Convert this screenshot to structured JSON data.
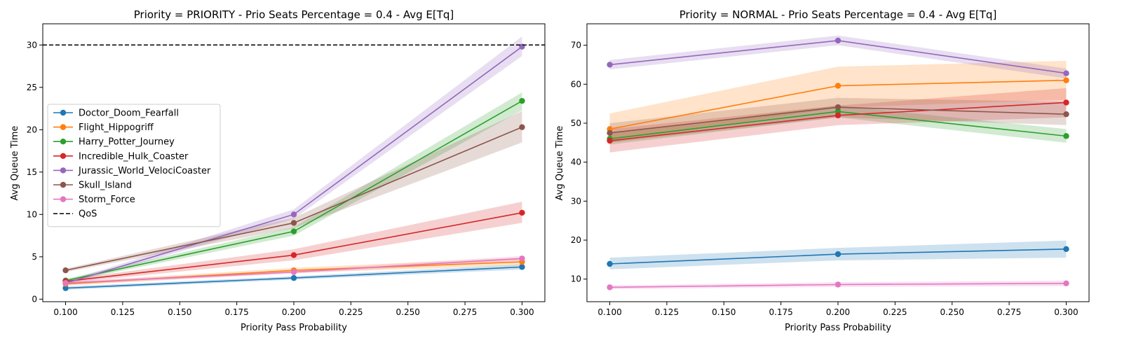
{
  "chart_data": [
    {
      "type": "line",
      "title": "Priority = PRIORITY - Prio Seats Percentage = 0.4 - Avg E[Tq]",
      "xlabel": "Priority Pass Probability",
      "ylabel": "Avg Queue Time",
      "xlim": [
        0.09,
        0.31
      ],
      "ylim": [
        -0.3,
        32.5
      ],
      "xticks": [
        0.1,
        0.125,
        0.15,
        0.175,
        0.2,
        0.225,
        0.25,
        0.275,
        0.3
      ],
      "xtick_labels": [
        "0.100",
        "0.125",
        "0.150",
        "0.175",
        "0.200",
        "0.225",
        "0.250",
        "0.275",
        "0.300"
      ],
      "yticks": [
        0,
        5,
        10,
        15,
        20,
        25,
        30
      ],
      "ytick_labels": [
        "0",
        "5",
        "10",
        "15",
        "20",
        "25",
        "30"
      ],
      "grid": false,
      "legend_position": "center-left",
      "x": [
        0.1,
        0.2,
        0.3
      ],
      "series": [
        {
          "name": "Doctor_Doom_Fearfall",
          "color": "#1f77b4",
          "values": [
            1.3,
            2.5,
            3.8
          ],
          "lower": [
            1.1,
            2.3,
            3.5
          ],
          "upper": [
            1.5,
            2.7,
            4.1
          ]
        },
        {
          "name": "Flight_Hippogriff",
          "color": "#ff7f0e",
          "values": [
            1.8,
            3.4,
            4.4
          ],
          "lower": [
            1.6,
            3.1,
            4.0
          ],
          "upper": [
            2.0,
            3.7,
            4.9
          ]
        },
        {
          "name": "Harry_Potter_Journey",
          "color": "#2ca02c",
          "values": [
            2.2,
            8.0,
            23.4
          ],
          "lower": [
            2.0,
            7.5,
            22.3
          ],
          "upper": [
            2.4,
            8.5,
            24.4
          ]
        },
        {
          "name": "Incredible_Hulk_Coaster",
          "color": "#d62728",
          "values": [
            2.1,
            5.2,
            10.2
          ],
          "lower": [
            1.9,
            4.6,
            9.0
          ],
          "upper": [
            2.3,
            5.9,
            11.5
          ]
        },
        {
          "name": "Jurassic_World_VelociCoaster",
          "color": "#9467bd",
          "values": [
            1.9,
            10.0,
            29.8
          ],
          "lower": [
            1.7,
            9.5,
            28.7
          ],
          "upper": [
            2.1,
            10.6,
            31.0
          ]
        },
        {
          "name": "Skull_Island",
          "color": "#8c564b",
          "values": [
            3.4,
            9.0,
            20.3
          ],
          "lower": [
            3.2,
            8.4,
            18.5
          ],
          "upper": [
            3.6,
            9.6,
            22.2
          ]
        },
        {
          "name": "Storm_Force",
          "color": "#e377c2",
          "values": [
            1.9,
            3.2,
            4.8
          ],
          "lower": [
            1.7,
            3.0,
            4.5
          ],
          "upper": [
            2.1,
            3.4,
            5.1
          ]
        }
      ],
      "reference_line": {
        "name": "QoS",
        "y": 30,
        "color": "#000000",
        "style": "dashed"
      }
    },
    {
      "type": "line",
      "title": "Priority = NORMAL - Prio Seats Percentage = 0.4 - Avg E[Tq]",
      "xlabel": "Priority Pass Probability",
      "ylabel": "Avg Queue Time",
      "xlim": [
        0.09,
        0.31
      ],
      "ylim": [
        4.2,
        75.5
      ],
      "xticks": [
        0.1,
        0.125,
        0.15,
        0.175,
        0.2,
        0.225,
        0.25,
        0.275,
        0.3
      ],
      "xtick_labels": [
        "0.100",
        "0.125",
        "0.150",
        "0.175",
        "0.200",
        "0.225",
        "0.250",
        "0.275",
        "0.300"
      ],
      "yticks": [
        10,
        20,
        30,
        40,
        50,
        60,
        70
      ],
      "ytick_labels": [
        "10",
        "20",
        "30",
        "40",
        "50",
        "60",
        "70"
      ],
      "grid": false,
      "x": [
        0.1,
        0.2,
        0.3
      ],
      "series": [
        {
          "name": "Doctor_Doom_Fearfall",
          "color": "#1f77b4",
          "values": [
            13.9,
            16.4,
            17.7
          ],
          "lower": [
            12.5,
            14.8,
            15.5
          ],
          "upper": [
            15.5,
            18.0,
            19.9
          ]
        },
        {
          "name": "Flight_Hippogriff",
          "color": "#ff7f0e",
          "values": [
            48.5,
            59.6,
            61.0
          ],
          "lower": [
            45.0,
            54.0,
            56.0
          ],
          "upper": [
            52.5,
            64.5,
            66.0
          ]
        },
        {
          "name": "Harry_Potter_Journey",
          "color": "#2ca02c",
          "values": [
            46.0,
            53.0,
            46.7
          ],
          "lower": [
            44.5,
            51.5,
            45.0
          ],
          "upper": [
            47.5,
            54.5,
            48.5
          ]
        },
        {
          "name": "Incredible_Hulk_Coaster",
          "color": "#d62728",
          "values": [
            45.5,
            52.0,
            55.3
          ],
          "lower": [
            42.5,
            49.5,
            51.5
          ],
          "upper": [
            48.5,
            54.5,
            59.0
          ]
        },
        {
          "name": "Jurassic_World_VelociCoaster",
          "color": "#9467bd",
          "values": [
            65.0,
            71.2,
            62.8
          ],
          "lower": [
            63.8,
            70.0,
            61.5
          ],
          "upper": [
            66.2,
            72.5,
            64.0
          ]
        },
        {
          "name": "Skull_Island",
          "color": "#8c564b",
          "values": [
            47.5,
            54.1,
            52.3
          ],
          "lower": [
            45.0,
            51.5,
            49.5
          ],
          "upper": [
            50.0,
            56.5,
            55.5
          ]
        },
        {
          "name": "Storm_Force",
          "color": "#e377c2",
          "values": [
            7.9,
            8.6,
            8.9
          ],
          "lower": [
            7.4,
            8.0,
            8.2
          ],
          "upper": [
            8.4,
            9.2,
            9.6
          ]
        }
      ]
    }
  ]
}
